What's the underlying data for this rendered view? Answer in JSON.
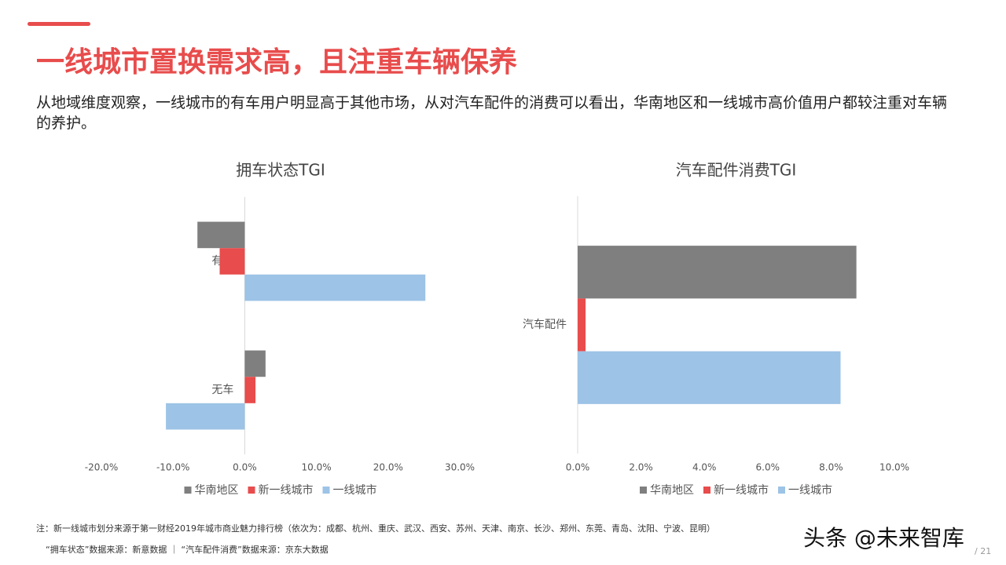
{
  "header": {
    "title": "一线城市置换需求高，且注重车辆保养",
    "description": "从地域维度观察，一线城市的有车用户明显高于其他市场，从对汽车配件的消费可以看出，华南地区和一线城市高价值用户都较注重对车辆的养护。"
  },
  "chart_data": [
    {
      "type": "bar",
      "orientation": "horizontal",
      "title": "拥车状态TGI",
      "categories": [
        "有车",
        "无车"
      ],
      "series": [
        {
          "name": "华南地区",
          "color": "#7f7f7f",
          "values": [
            -6.6,
            2.9
          ]
        },
        {
          "name": "新一线城市",
          "color": "#e84c4c",
          "values": [
            -3.5,
            1.5
          ]
        },
        {
          "name": "一线城市",
          "color": "#9dc3e6",
          "values": [
            25.2,
            -11.0
          ]
        }
      ],
      "xlim": [
        -20,
        30
      ],
      "xticks": [
        {
          "value": -20,
          "label": "-20.0%"
        },
        {
          "value": -10,
          "label": "-10.0%"
        },
        {
          "value": 0,
          "label": "0.0%"
        },
        {
          "value": 10,
          "label": "10.0%"
        },
        {
          "value": 20,
          "label": "20.0%"
        },
        {
          "value": 30,
          "label": "30.0%"
        }
      ],
      "grid": false,
      "legend": "bottom"
    },
    {
      "type": "bar",
      "orientation": "horizontal",
      "title": "汽车配件消费TGI",
      "categories": [
        "汽车配件"
      ],
      "series": [
        {
          "name": "华南地区",
          "color": "#7f7f7f",
          "values": [
            8.8
          ]
        },
        {
          "name": "新一线城市",
          "color": "#e84c4c",
          "values": [
            0.25
          ]
        },
        {
          "name": "一线城市",
          "color": "#9dc3e6",
          "values": [
            8.3
          ]
        }
      ],
      "xlim": [
        0,
        10
      ],
      "xticks": [
        {
          "value": 0,
          "label": "0.0%"
        },
        {
          "value": 2,
          "label": "2.0%"
        },
        {
          "value": 4,
          "label": "4.0%"
        },
        {
          "value": 6,
          "label": "6.0%"
        },
        {
          "value": 8,
          "label": "8.0%"
        },
        {
          "value": 10,
          "label": "10.0%"
        }
      ],
      "grid": false,
      "legend": "bottom"
    }
  ],
  "footer": {
    "note": "注：新一线城市划分来源于第一财经2019年城市商业魅力排行榜（依次为：成都、杭州、重庆、武汉、西安、苏州、天津、南京、长沙、郑州、东莞、青岛、沈阳、宁波、昆明）",
    "source": "“拥车状态”数据来源：新意数据 ｜ “汽车配件消费”数据来源：京东大数据",
    "watermark": "头条 @未来智库",
    "page": "/ 21"
  }
}
